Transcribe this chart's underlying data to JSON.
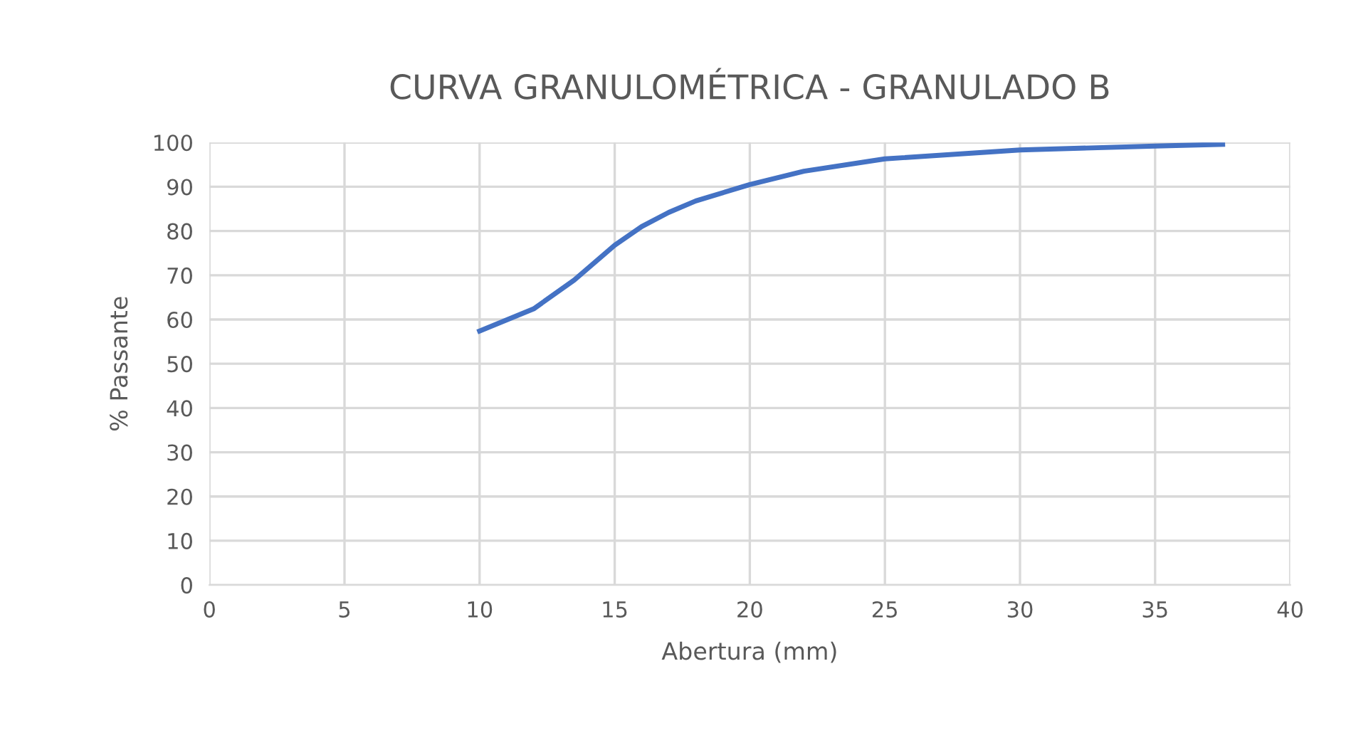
{
  "chart_data": {
    "type": "line",
    "title": "CURVA GRANULOMÉTRICA - GRANULADO B",
    "xlabel": "Abertura (mm)",
    "ylabel": "% Passante",
    "x": [
      10,
      12,
      13.5,
      15,
      16,
      17,
      18,
      20,
      22,
      25,
      30,
      35,
      37.5
    ],
    "series": [
      {
        "color": "#4472c4",
        "values": [
          57.4,
          62.4,
          68.9,
          76.8,
          81,
          84.2,
          86.8,
          90.5,
          93.5,
          96.3,
          98.3,
          99.2,
          99.6
        ]
      }
    ],
    "xlim": [
      0,
      40
    ],
    "xticks": [
      0,
      5,
      10,
      15,
      20,
      25,
      30,
      35,
      40
    ],
    "ylim": [
      0,
      100
    ],
    "yticks": [
      0,
      10,
      20,
      30,
      40,
      50,
      60,
      70,
      80,
      90,
      100
    ],
    "grid": true,
    "marker": "none",
    "line_style": "solid"
  }
}
